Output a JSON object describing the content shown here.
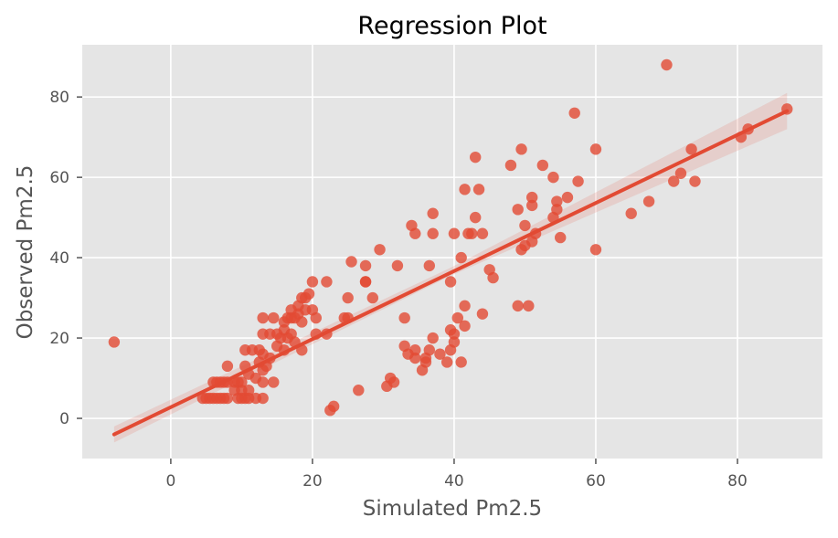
{
  "chart_data": {
    "type": "scatter",
    "title": "Regression Plot",
    "xlabel": "Simulated Pm2.5",
    "ylabel": "Observed Pm2.5",
    "xlim": [
      -12.5,
      92
    ],
    "ylim": [
      -10,
      93
    ],
    "xticks": [
      0,
      20,
      40,
      60,
      80
    ],
    "yticks": [
      0,
      20,
      40,
      60,
      80
    ],
    "grid": true,
    "style": "ggplot",
    "colors": {
      "background": "#e5e5e5",
      "grid": "#ffffff",
      "points": "#e24a33",
      "line": "#e24a33",
      "band": "#e24a33",
      "text": "#555555",
      "title": "#000000"
    },
    "regression_line": {
      "x": [
        -8,
        87
      ],
      "y": [
        -4,
        76.5
      ]
    },
    "confidence_band": {
      "x": [
        -8,
        39.5,
        87
      ],
      "lower": [
        -6,
        35.5,
        72
      ],
      "upper": [
        -2,
        37.5,
        81
      ]
    },
    "points": [
      {
        "x": -8,
        "y": 19
      },
      {
        "x": 4.5,
        "y": 5
      },
      {
        "x": 5,
        "y": 5
      },
      {
        "x": 5.5,
        "y": 5
      },
      {
        "x": 6,
        "y": 5
      },
      {
        "x": 6.5,
        "y": 5
      },
      {
        "x": 7,
        "y": 5
      },
      {
        "x": 7.5,
        "y": 5
      },
      {
        "x": 8,
        "y": 5
      },
      {
        "x": 9.5,
        "y": 5
      },
      {
        "x": 10,
        "y": 5
      },
      {
        "x": 10.5,
        "y": 5
      },
      {
        "x": 11,
        "y": 5
      },
      {
        "x": 12,
        "y": 5
      },
      {
        "x": 13,
        "y": 5
      },
      {
        "x": 6,
        "y": 9
      },
      {
        "x": 6.5,
        "y": 9
      },
      {
        "x": 7,
        "y": 9
      },
      {
        "x": 7.5,
        "y": 9
      },
      {
        "x": 8,
        "y": 9
      },
      {
        "x": 9,
        "y": 9
      },
      {
        "x": 9.5,
        "y": 9
      },
      {
        "x": 10,
        "y": 9
      },
      {
        "x": 9,
        "y": 7
      },
      {
        "x": 10,
        "y": 7
      },
      {
        "x": 11,
        "y": 7
      },
      {
        "x": 8,
        "y": 13
      },
      {
        "x": 10.5,
        "y": 13
      },
      {
        "x": 11,
        "y": 11
      },
      {
        "x": 12,
        "y": 10
      },
      {
        "x": 13,
        "y": 12
      },
      {
        "x": 12.5,
        "y": 14
      },
      {
        "x": 10.5,
        "y": 17
      },
      {
        "x": 11.5,
        "y": 17
      },
      {
        "x": 12.5,
        "y": 17
      },
      {
        "x": 13,
        "y": 16
      },
      {
        "x": 13,
        "y": 9
      },
      {
        "x": 14.5,
        "y": 9
      },
      {
        "x": 13.5,
        "y": 13
      },
      {
        "x": 14,
        "y": 15
      },
      {
        "x": 13,
        "y": 21
      },
      {
        "x": 13,
        "y": 25
      },
      {
        "x": 14.5,
        "y": 25
      },
      {
        "x": 14,
        "y": 21
      },
      {
        "x": 15,
        "y": 21
      },
      {
        "x": 15,
        "y": 18
      },
      {
        "x": 15.5,
        "y": 20
      },
      {
        "x": 16,
        "y": 17
      },
      {
        "x": 16,
        "y": 22
      },
      {
        "x": 16,
        "y": 24
      },
      {
        "x": 16.5,
        "y": 25
      },
      {
        "x": 16.5,
        "y": 20
      },
      {
        "x": 17,
        "y": 21
      },
      {
        "x": 17,
        "y": 25
      },
      {
        "x": 17,
        "y": 27
      },
      {
        "x": 17.5,
        "y": 19
      },
      {
        "x": 17.5,
        "y": 25
      },
      {
        "x": 18,
        "y": 26
      },
      {
        "x": 18,
        "y": 28
      },
      {
        "x": 18.5,
        "y": 24
      },
      {
        "x": 18.5,
        "y": 30
      },
      {
        "x": 18.5,
        "y": 17
      },
      {
        "x": 19,
        "y": 27
      },
      {
        "x": 19,
        "y": 30
      },
      {
        "x": 19.5,
        "y": 31
      },
      {
        "x": 20,
        "y": 34
      },
      {
        "x": 20,
        "y": 27
      },
      {
        "x": 20.5,
        "y": 25
      },
      {
        "x": 20.5,
        "y": 21
      },
      {
        "x": 22,
        "y": 34
      },
      {
        "x": 22,
        "y": 21
      },
      {
        "x": 22.5,
        "y": 2
      },
      {
        "x": 23,
        "y": 3
      },
      {
        "x": 24.5,
        "y": 25
      },
      {
        "x": 25,
        "y": 25
      },
      {
        "x": 25,
        "y": 30
      },
      {
        "x": 25.5,
        "y": 39
      },
      {
        "x": 26.5,
        "y": 7
      },
      {
        "x": 27.5,
        "y": 38
      },
      {
        "x": 27.5,
        "y": 34
      },
      {
        "x": 27.5,
        "y": 34
      },
      {
        "x": 28.5,
        "y": 30
      },
      {
        "x": 29.5,
        "y": 42
      },
      {
        "x": 30.5,
        "y": 8
      },
      {
        "x": 31,
        "y": 10
      },
      {
        "x": 31.5,
        "y": 9
      },
      {
        "x": 32,
        "y": 38
      },
      {
        "x": 33,
        "y": 25
      },
      {
        "x": 33,
        "y": 18
      },
      {
        "x": 33.5,
        "y": 16
      },
      {
        "x": 34,
        "y": 48
      },
      {
        "x": 34.5,
        "y": 46
      },
      {
        "x": 34.5,
        "y": 15
      },
      {
        "x": 34.5,
        "y": 17
      },
      {
        "x": 35.5,
        "y": 12
      },
      {
        "x": 36,
        "y": 14
      },
      {
        "x": 36,
        "y": 15
      },
      {
        "x": 36.5,
        "y": 38
      },
      {
        "x": 36.5,
        "y": 17
      },
      {
        "x": 37,
        "y": 51
      },
      {
        "x": 37,
        "y": 46
      },
      {
        "x": 37,
        "y": 20
      },
      {
        "x": 38,
        "y": 16
      },
      {
        "x": 39,
        "y": 14
      },
      {
        "x": 39.5,
        "y": 34
      },
      {
        "x": 39.5,
        "y": 17
      },
      {
        "x": 39.5,
        "y": 22
      },
      {
        "x": 40,
        "y": 21
      },
      {
        "x": 40,
        "y": 19
      },
      {
        "x": 40,
        "y": 46
      },
      {
        "x": 40.5,
        "y": 25
      },
      {
        "x": 41,
        "y": 14
      },
      {
        "x": 41,
        "y": 40
      },
      {
        "x": 41.5,
        "y": 57
      },
      {
        "x": 41.5,
        "y": 28
      },
      {
        "x": 41.5,
        "y": 23
      },
      {
        "x": 42,
        "y": 46
      },
      {
        "x": 42.5,
        "y": 46
      },
      {
        "x": 43,
        "y": 65
      },
      {
        "x": 43,
        "y": 50
      },
      {
        "x": 43.5,
        "y": 57
      },
      {
        "x": 44,
        "y": 26
      },
      {
        "x": 44,
        "y": 46
      },
      {
        "x": 45,
        "y": 37
      },
      {
        "x": 45.5,
        "y": 35
      },
      {
        "x": 48,
        "y": 63
      },
      {
        "x": 49,
        "y": 52
      },
      {
        "x": 49,
        "y": 28
      },
      {
        "x": 49.5,
        "y": 67
      },
      {
        "x": 49.5,
        "y": 42
      },
      {
        "x": 50,
        "y": 48
      },
      {
        "x": 50,
        "y": 43
      },
      {
        "x": 50.5,
        "y": 28
      },
      {
        "x": 51,
        "y": 55
      },
      {
        "x": 51,
        "y": 53
      },
      {
        "x": 51,
        "y": 44
      },
      {
        "x": 51.5,
        "y": 46
      },
      {
        "x": 52.5,
        "y": 63
      },
      {
        "x": 54,
        "y": 60
      },
      {
        "x": 54,
        "y": 50
      },
      {
        "x": 54.5,
        "y": 54
      },
      {
        "x": 54.5,
        "y": 52
      },
      {
        "x": 55,
        "y": 45
      },
      {
        "x": 56,
        "y": 55
      },
      {
        "x": 57,
        "y": 76
      },
      {
        "x": 57.5,
        "y": 59
      },
      {
        "x": 60,
        "y": 67
      },
      {
        "x": 60,
        "y": 42
      },
      {
        "x": 65,
        "y": 51
      },
      {
        "x": 67.5,
        "y": 54
      },
      {
        "x": 70,
        "y": 88
      },
      {
        "x": 71,
        "y": 59
      },
      {
        "x": 72,
        "y": 61
      },
      {
        "x": 73.5,
        "y": 67
      },
      {
        "x": 74,
        "y": 59
      },
      {
        "x": 80.5,
        "y": 70
      },
      {
        "x": 81.5,
        "y": 72
      },
      {
        "x": 87,
        "y": 77
      }
    ]
  }
}
